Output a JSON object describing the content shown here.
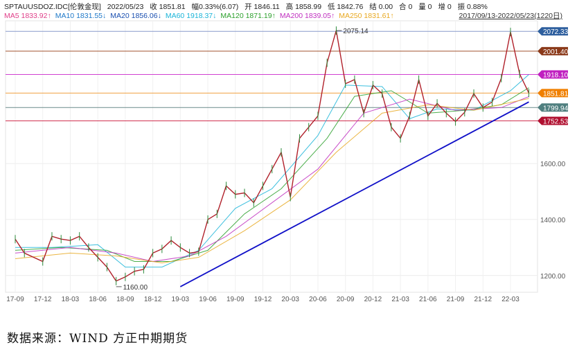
{
  "header": {
    "symbol": "SPTAUUSDOZ.IDC[伦敦金现]",
    "date": "2022/05/23",
    "close": "收 1851.81",
    "change": "幅0.33%(6.07)",
    "open": "开 1846.11",
    "high": "高 1858.99",
    "low": "低 1842.76",
    "settle": "结 0.00",
    "position": "合 0",
    "volume": "量 0",
    "increase": "增 0",
    "amplitude": "振 0.88%",
    "range": "2017/09/13-2022/05/23(1220日)"
  },
  "ma_legend": [
    {
      "label": "MA5 1833.92↑",
      "color": "#e0408a"
    },
    {
      "label": "MA10 1831.55↓",
      "color": "#1e78c8"
    },
    {
      "label": "MA20 1856.06↓",
      "color": "#1a4fb0"
    },
    {
      "label": "MA60 1918.37↓",
      "color": "#19b4d8"
    },
    {
      "label": "MA120 1871.19↑",
      "color": "#2ca02c"
    },
    {
      "label": "MA200 1839.05↑",
      "color": "#c030c0"
    },
    {
      "label": "MA250 1831.61↑",
      "color": "#e8a820"
    }
  ],
  "source_note": "数据来源：WIND 方正中期期货",
  "chart_data": {
    "type": "line",
    "title": "",
    "y_ticks": [
      1200,
      1400,
      1600
    ],
    "ylim": [
      1140,
      2110
    ],
    "x_ticks": [
      "17-09",
      "17-12",
      "18-03",
      "18-06",
      "18-09",
      "18-12",
      "19-03",
      "19-06",
      "19-09",
      "19-12",
      "20-03",
      "20-06",
      "20-09",
      "20-12",
      "21-03",
      "21-06",
      "21-09",
      "21-12",
      "22-03"
    ],
    "price_series": {
      "name": "",
      "points": [
        [
          "17-09",
          1330
        ],
        [
          "17-10",
          1280
        ],
        [
          "17-12",
          1250
        ],
        [
          "18-01",
          1340
        ],
        [
          "18-02",
          1330
        ],
        [
          "18-03",
          1325
        ],
        [
          "18-04",
          1340
        ],
        [
          "18-05",
          1300
        ],
        [
          "18-06",
          1265
        ],
        [
          "18-07",
          1230
        ],
        [
          "18-08",
          1180
        ],
        [
          "18-09",
          1195
        ],
        [
          "18-10",
          1215
        ],
        [
          "18-11",
          1222
        ],
        [
          "18-12",
          1280
        ],
        [
          "19-01",
          1295
        ],
        [
          "19-02",
          1325
        ],
        [
          "19-03",
          1300
        ],
        [
          "19-04",
          1280
        ],
        [
          "19-05",
          1285
        ],
        [
          "19-06",
          1400
        ],
        [
          "19-07",
          1420
        ],
        [
          "19-08",
          1520
        ],
        [
          "19-09",
          1490
        ],
        [
          "19-10",
          1495
        ],
        [
          "19-11",
          1460
        ],
        [
          "19-12",
          1520
        ],
        [
          "20-01",
          1580
        ],
        [
          "20-02",
          1640
        ],
        [
          "20-03",
          1480
        ],
        [
          "20-04",
          1690
        ],
        [
          "20-05",
          1730
        ],
        [
          "20-06",
          1770
        ],
        [
          "20-07",
          1960
        ],
        [
          "20-08",
          2075
        ],
        [
          "20-09",
          1885
        ],
        [
          "20-10",
          1900
        ],
        [
          "20-11",
          1780
        ],
        [
          "20-12",
          1880
        ],
        [
          "21-01",
          1850
        ],
        [
          "21-02",
          1730
        ],
        [
          "21-03",
          1690
        ],
        [
          "21-04",
          1770
        ],
        [
          "21-05",
          1900
        ],
        [
          "21-06",
          1770
        ],
        [
          "21-07",
          1815
        ],
        [
          "21-08",
          1780
        ],
        [
          "21-09",
          1750
        ],
        [
          "21-10",
          1783
        ],
        [
          "21-11",
          1850
        ],
        [
          "21-12",
          1800
        ],
        [
          "22-01",
          1820
        ],
        [
          "22-02",
          1905
        ],
        [
          "22-03",
          2070
        ],
        [
          "22-04",
          1920
        ],
        [
          "22-05",
          1852
        ]
      ]
    },
    "ma_lines": [
      {
        "name": "MA60",
        "points": [
          [
            "17-09",
            1300
          ],
          [
            "18-01",
            1300
          ],
          [
            "18-06",
            1310
          ],
          [
            "18-09",
            1230
          ],
          [
            "19-01",
            1230
          ],
          [
            "19-05",
            1290
          ],
          [
            "19-09",
            1440
          ],
          [
            "20-01",
            1510
          ],
          [
            "20-06",
            1700
          ],
          [
            "20-09",
            1880
          ],
          [
            "21-01",
            1875
          ],
          [
            "21-04",
            1760
          ],
          [
            "21-07",
            1795
          ],
          [
            "21-11",
            1790
          ],
          [
            "22-03",
            1860
          ],
          [
            "22-05",
            1918
          ]
        ]
      },
      {
        "name": "MA120",
        "points": [
          [
            "17-09",
            1290
          ],
          [
            "18-02",
            1300
          ],
          [
            "18-07",
            1290
          ],
          [
            "18-10",
            1250
          ],
          [
            "19-02",
            1250
          ],
          [
            "19-06",
            1290
          ],
          [
            "19-10",
            1420
          ],
          [
            "20-02",
            1510
          ],
          [
            "20-07",
            1690
          ],
          [
            "20-10",
            1840
          ],
          [
            "21-02",
            1860
          ],
          [
            "21-06",
            1780
          ],
          [
            "21-10",
            1790
          ],
          [
            "22-02",
            1810
          ],
          [
            "22-05",
            1871
          ]
        ]
      },
      {
        "name": "MA200",
        "points": [
          [
            "17-09",
            1280
          ],
          [
            "18-03",
            1300
          ],
          [
            "18-08",
            1280
          ],
          [
            "18-12",
            1250
          ],
          [
            "19-04",
            1270
          ],
          [
            "19-08",
            1340
          ],
          [
            "20-01",
            1460
          ],
          [
            "20-06",
            1580
          ],
          [
            "20-11",
            1780
          ],
          [
            "21-04",
            1830
          ],
          [
            "21-09",
            1790
          ],
          [
            "22-02",
            1800
          ],
          [
            "22-05",
            1839
          ]
        ]
      },
      {
        "name": "MA250",
        "points": [
          [
            "17-09",
            1260
          ],
          [
            "18-03",
            1280
          ],
          [
            "18-08",
            1270
          ],
          [
            "19-01",
            1245
          ],
          [
            "19-05",
            1265
          ],
          [
            "19-10",
            1360
          ],
          [
            "20-03",
            1470
          ],
          [
            "20-08",
            1640
          ],
          [
            "21-01",
            1780
          ],
          [
            "21-06",
            1810
          ],
          [
            "21-11",
            1790
          ],
          [
            "22-05",
            1832
          ]
        ]
      }
    ],
    "trendline": [
      [
        "19-03",
        1160
      ],
      [
        "22-05",
        1820
      ]
    ],
    "horizontal_levels": [
      {
        "value": 2072.33,
        "label": "2072.33",
        "line_color": "#8899cc",
        "badge_color": "#2e5f9e"
      },
      {
        "value": 2001.4,
        "label": "2001.40",
        "line_color": "#a0522d",
        "badge_color": "#8b3a1a"
      },
      {
        "value": 1918.1,
        "label": "1918.10",
        "line_color": "#d040d0",
        "badge_color": "#c020c0"
      },
      {
        "value": 1851.81,
        "label": "1851.81",
        "line_color": "#f0a040",
        "badge_color": "#f07f00"
      },
      {
        "value": 1799.94,
        "label": "1799.94",
        "line_color": "#6a8a8a",
        "badge_color": "#4f7f7f"
      },
      {
        "value": 1752.53,
        "label": "1752.53",
        "line_color": "#d03050",
        "badge_color": "#b01030"
      }
    ],
    "annotations": [
      {
        "text": "2075.14",
        "x": "20-08",
        "y": 2075.14
      },
      {
        "text": "1160.00",
        "x": "18-08",
        "y": 1160.0
      }
    ],
    "grid": true
  }
}
